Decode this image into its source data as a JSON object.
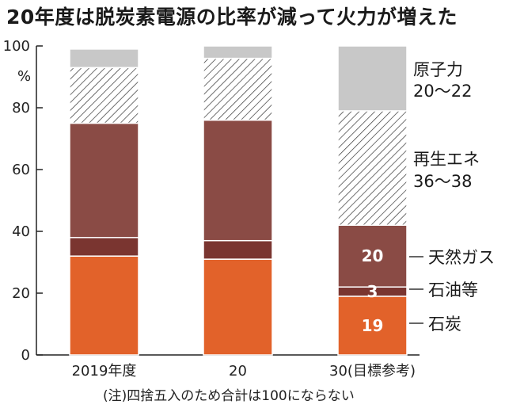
{
  "chart_data": {
    "type": "stacked-bar",
    "title": "20年度は脱炭素電源の比率が減って火力が増えた",
    "y_unit": "%",
    "ylim": [
      0,
      100
    ],
    "yticks": [
      "0",
      "20",
      "40",
      "60",
      "80",
      "100"
    ],
    "categories": [
      "2019年度",
      "20",
      "30(目標参考)"
    ],
    "series": [
      {
        "name": "石炭",
        "color": "#e2622a",
        "values": [
          32,
          31,
          19
        ]
      },
      {
        "name": "石油等",
        "color": "#7a3530",
        "values": [
          6,
          6,
          3
        ]
      },
      {
        "name": "天然ガス",
        "color": "#8a4b45",
        "values": [
          37,
          39,
          20
        ]
      },
      {
        "name": "再生エネ",
        "color": "hatch",
        "values": [
          18,
          20,
          37
        ]
      },
      {
        "name": "原子力",
        "color": "#c8c8c8",
        "values": [
          6,
          4,
          21
        ]
      }
    ],
    "segment_labels": {
      "category_index": 2,
      "labels": [
        "19",
        "3",
        "20"
      ]
    },
    "legend": [
      {
        "lines": [
          "原子力",
          "20～22"
        ]
      },
      {
        "lines": [
          "再生エネ",
          "36～38"
        ]
      },
      {
        "lines": [
          "天然ガス"
        ]
      },
      {
        "lines": [
          "石油等"
        ]
      },
      {
        "lines": [
          "石炭"
        ]
      }
    ],
    "note": "(注)四捨五入のため合計は100にならない"
  }
}
